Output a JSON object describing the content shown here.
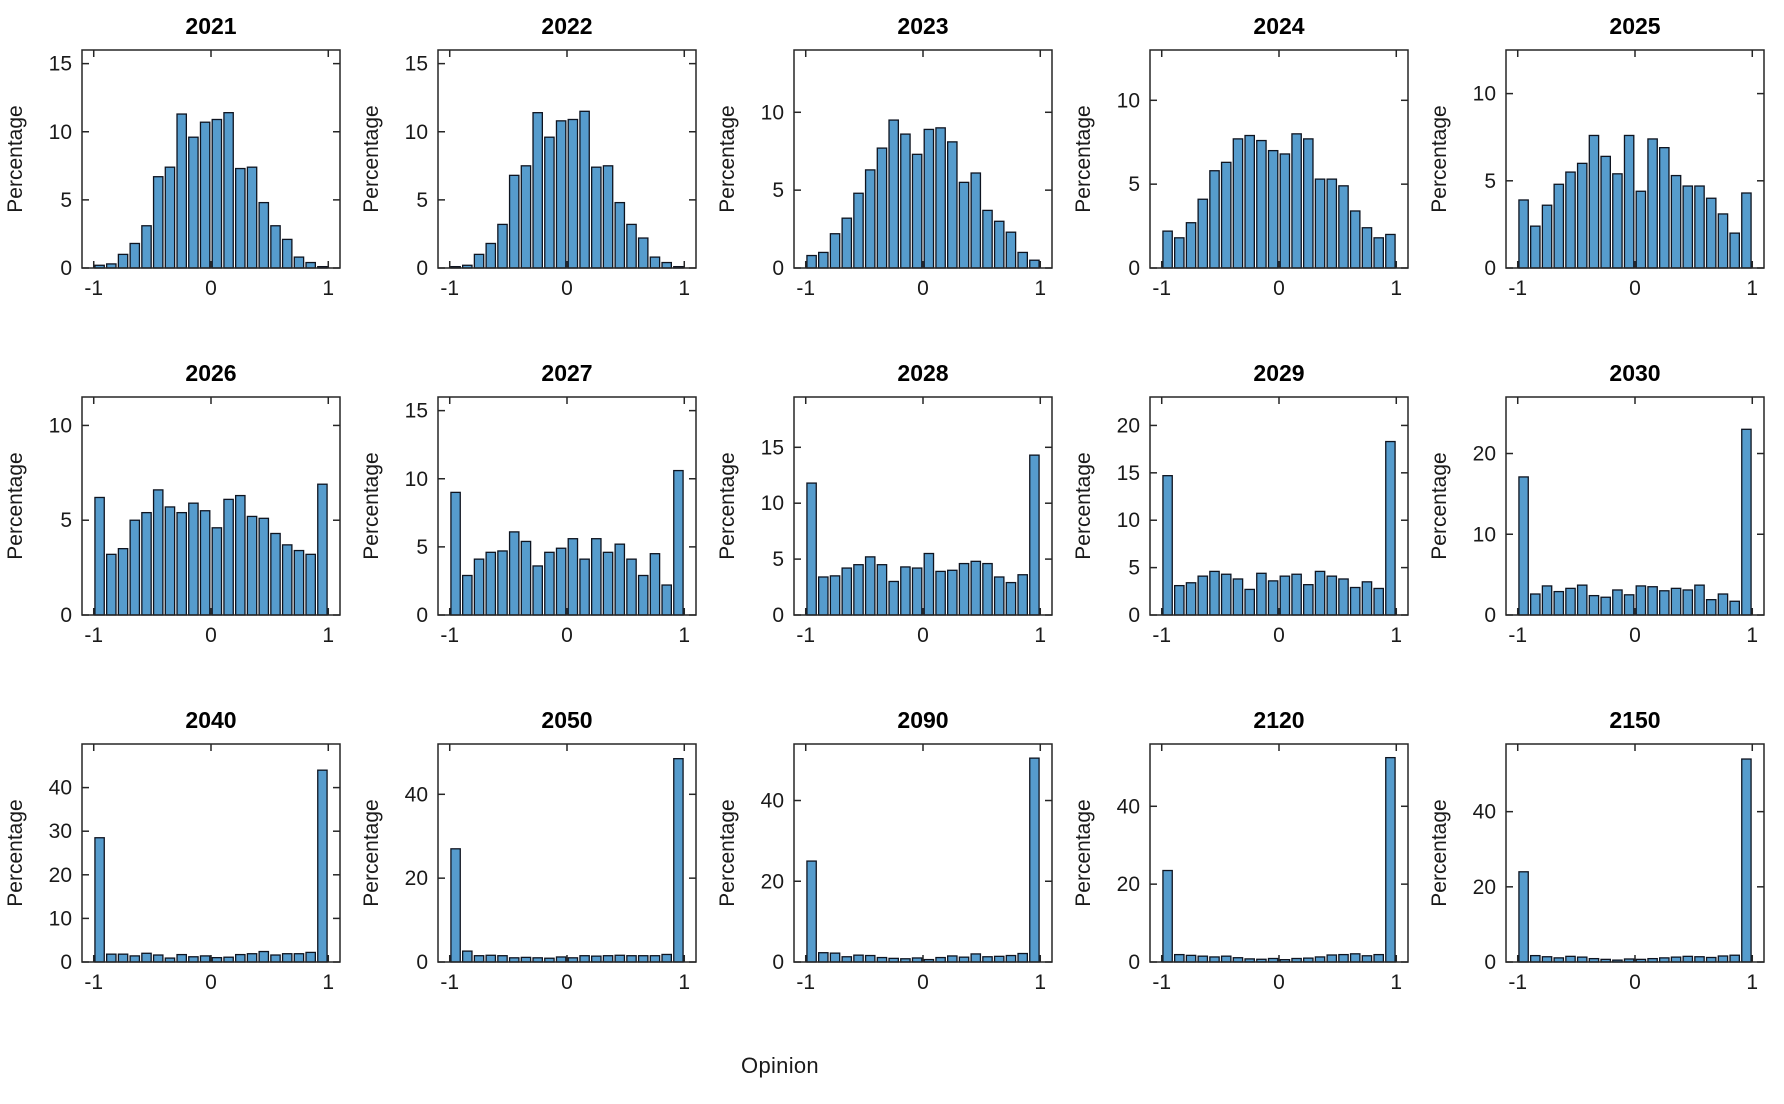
{
  "figure": {
    "xlabel": "Opinion",
    "ylabel": "Percentage",
    "bar_color": "#569CCD",
    "bar_edge_color": "#0e1420",
    "axis_color": "#262626",
    "xticks": [
      -1,
      0,
      1
    ],
    "xlim": [
      -1.1,
      1.1
    ],
    "bins": {
      "start": -1,
      "width": 0.1,
      "count": 20
    }
  },
  "chart_data": [
    {
      "type": "bar",
      "title": "2021",
      "ylabel": "Percentage",
      "yticks": [
        0,
        5,
        10,
        15
      ],
      "ylim": [
        0,
        16
      ],
      "values": [
        0.2,
        0.3,
        1.0,
        1.8,
        3.1,
        6.7,
        7.4,
        11.3,
        9.6,
        10.7,
        10.9,
        11.4,
        7.3,
        7.4,
        4.8,
        3.1,
        2.1,
        0.8,
        0.4,
        0.1
      ]
    },
    {
      "type": "bar",
      "title": "2022",
      "ylabel": "Percentage",
      "yticks": [
        0,
        5,
        10,
        15
      ],
      "ylim": [
        0,
        16
      ],
      "values": [
        0.1,
        0.2,
        1.0,
        1.8,
        3.2,
        6.8,
        7.5,
        11.4,
        9.6,
        10.8,
        10.9,
        11.5,
        7.4,
        7.5,
        4.8,
        3.2,
        2.2,
        0.8,
        0.4,
        0.1
      ]
    },
    {
      "type": "bar",
      "title": "2023",
      "ylabel": "Percentage",
      "yticks": [
        0,
        5,
        10
      ],
      "ylim": [
        0,
        14
      ],
      "values": [
        0.8,
        1.0,
        2.2,
        3.2,
        4.8,
        6.3,
        7.7,
        9.5,
        8.6,
        7.3,
        8.9,
        9.0,
        8.1,
        5.5,
        6.1,
        3.7,
        3.0,
        2.3,
        1.0,
        0.5
      ]
    },
    {
      "type": "bar",
      "title": "2024",
      "ylabel": "Percentage",
      "yticks": [
        0,
        5,
        10
      ],
      "ylim": [
        0,
        13
      ],
      "values": [
        2.2,
        1.8,
        2.7,
        4.1,
        5.8,
        6.3,
        7.7,
        7.9,
        7.6,
        7.0,
        6.8,
        8.0,
        7.7,
        5.3,
        5.3,
        4.9,
        3.4,
        2.4,
        1.8,
        2.0
      ]
    },
    {
      "type": "bar",
      "title": "2025",
      "ylabel": "Percentage",
      "yticks": [
        0,
        5,
        10
      ],
      "ylim": [
        0,
        12.5
      ],
      "values": [
        3.9,
        2.4,
        3.6,
        4.8,
        5.5,
        6.0,
        7.6,
        6.4,
        5.4,
        7.6,
        4.4,
        7.4,
        6.9,
        5.3,
        4.7,
        4.7,
        4.0,
        3.1,
        2.0,
        4.3
      ]
    },
    {
      "type": "bar",
      "title": "2026",
      "ylabel": "Percentage",
      "yticks": [
        0,
        5,
        10
      ],
      "ylim": [
        0,
        11.5
      ],
      "values": [
        6.2,
        3.2,
        3.5,
        5.0,
        5.4,
        6.6,
        5.7,
        5.4,
        5.9,
        5.5,
        4.6,
        6.1,
        6.3,
        5.2,
        5.1,
        4.3,
        3.7,
        3.4,
        3.2,
        6.9
      ]
    },
    {
      "type": "bar",
      "title": "2027",
      "ylabel": "Percentage",
      "yticks": [
        0,
        5,
        10,
        15
      ],
      "ylim": [
        0,
        16
      ],
      "values": [
        9.0,
        2.9,
        4.1,
        4.6,
        4.7,
        6.1,
        5.4,
        3.6,
        4.6,
        4.9,
        5.6,
        4.1,
        5.6,
        4.6,
        5.2,
        4.1,
        2.9,
        4.5,
        2.2,
        10.6
      ]
    },
    {
      "type": "bar",
      "title": "2028",
      "ylabel": "Percentage",
      "yticks": [
        0,
        5,
        10,
        15
      ],
      "ylim": [
        0,
        19.5
      ],
      "values": [
        11.8,
        3.4,
        3.5,
        4.2,
        4.5,
        5.2,
        4.5,
        3.0,
        4.3,
        4.2,
        5.5,
        3.9,
        4.0,
        4.6,
        4.8,
        4.6,
        3.4,
        2.9,
        3.6,
        14.3
      ]
    },
    {
      "type": "bar",
      "title": "2029",
      "ylabel": "Percentage",
      "yticks": [
        0,
        5,
        10,
        15,
        20
      ],
      "ylim": [
        0,
        23
      ],
      "values": [
        14.7,
        3.1,
        3.4,
        4.1,
        4.6,
        4.3,
        3.8,
        2.7,
        4.4,
        3.6,
        4.1,
        4.3,
        3.2,
        4.6,
        4.1,
        3.8,
        2.9,
        3.5,
        2.8,
        18.3
      ]
    },
    {
      "type": "bar",
      "title": "2030",
      "ylabel": "Percentage",
      "yticks": [
        0,
        10,
        20
      ],
      "ylim": [
        0,
        27
      ],
      "values": [
        17.1,
        2.6,
        3.6,
        2.9,
        3.3,
        3.7,
        2.4,
        2.2,
        3.1,
        2.5,
        3.6,
        3.5,
        3.0,
        3.3,
        3.1,
        3.7,
        1.9,
        2.6,
        1.7,
        23.0
      ]
    },
    {
      "type": "bar",
      "title": "2040",
      "ylabel": "Percentage",
      "yticks": [
        0,
        10,
        20,
        30,
        40
      ],
      "ylim": [
        0,
        50
      ],
      "values": [
        28.5,
        1.8,
        1.8,
        1.4,
        2.0,
        1.6,
        0.9,
        1.7,
        1.2,
        1.4,
        1.0,
        1.1,
        1.7,
        1.9,
        2.4,
        1.6,
        1.9,
        1.9,
        2.2,
        44.0
      ]
    },
    {
      "type": "bar",
      "title": "2050",
      "ylabel": "Percentage",
      "yticks": [
        0,
        20,
        40
      ],
      "ylim": [
        0,
        52
      ],
      "values": [
        27.0,
        2.6,
        1.5,
        1.6,
        1.5,
        1.0,
        1.1,
        1.0,
        0.9,
        1.2,
        1.0,
        1.5,
        1.4,
        1.5,
        1.6,
        1.5,
        1.5,
        1.5,
        1.8,
        48.5
      ]
    },
    {
      "type": "bar",
      "title": "2090",
      "ylabel": "Percentage",
      "yticks": [
        0,
        20,
        40
      ],
      "ylim": [
        0,
        54
      ],
      "values": [
        25.0,
        2.3,
        2.2,
        1.3,
        1.7,
        1.6,
        1.1,
        0.9,
        0.8,
        1.0,
        0.6,
        1.1,
        1.5,
        1.2,
        2.0,
        1.3,
        1.4,
        1.6,
        2.1,
        50.5
      ]
    },
    {
      "type": "bar",
      "title": "2120",
      "ylabel": "Percentage",
      "yticks": [
        0,
        20,
        40
      ],
      "ylim": [
        0,
        56
      ],
      "values": [
        23.5,
        1.9,
        1.7,
        1.5,
        1.3,
        1.5,
        1.1,
        0.8,
        0.7,
        0.9,
        0.6,
        0.9,
        1.0,
        1.3,
        1.8,
        1.9,
        2.1,
        1.6,
        1.9,
        52.5
      ]
    },
    {
      "type": "bar",
      "title": "2150",
      "ylabel": "Percentage",
      "yticks": [
        0,
        20,
        40
      ],
      "ylim": [
        0,
        58
      ],
      "values": [
        24.0,
        1.7,
        1.4,
        1.1,
        1.5,
        1.3,
        0.9,
        0.7,
        0.5,
        0.8,
        0.7,
        0.9,
        1.1,
        1.3,
        1.5,
        1.4,
        1.2,
        1.6,
        1.8,
        54.0
      ]
    }
  ]
}
